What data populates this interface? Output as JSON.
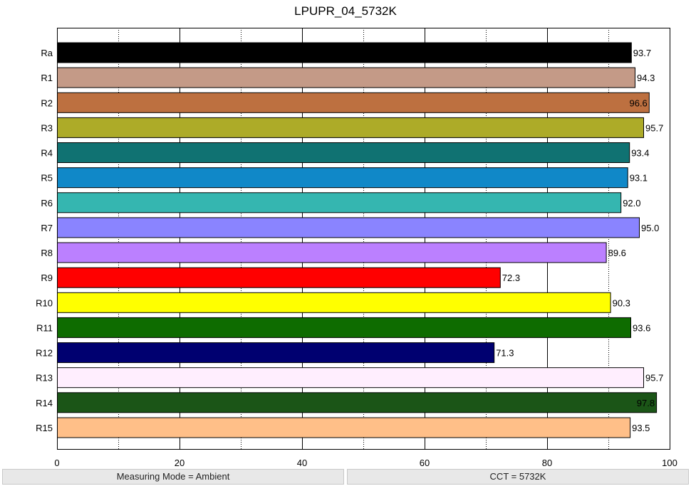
{
  "chart_data": {
    "type": "bar",
    "orientation": "horizontal",
    "title": "LPUPR_04_5732K",
    "categories": [
      "Ra",
      "R1",
      "R2",
      "R3",
      "R4",
      "R5",
      "R6",
      "R7",
      "R8",
      "R9",
      "R10",
      "R11",
      "R12",
      "R13",
      "R14",
      "R15"
    ],
    "values": [
      93.7,
      94.3,
      96.6,
      95.7,
      93.4,
      93.1,
      92.0,
      95.0,
      89.6,
      72.3,
      90.3,
      93.6,
      71.3,
      95.7,
      97.8,
      93.5
    ],
    "value_labels": [
      "93.7",
      "94.3",
      "96.6",
      "95.7",
      "93.4",
      "93.1",
      "92.0",
      "95.0",
      "89.6",
      "72.3",
      "90.3",
      "93.6",
      "71.3",
      "95.7",
      "97.8",
      "93.5"
    ],
    "colors": [
      "#000000",
      "#c49a87",
      "#bd7040",
      "#adab28",
      "#107272",
      "#1088c8",
      "#35b6b0",
      "#8a84ff",
      "#bb80ff",
      "#ff0000",
      "#ffff00",
      "#0e6c00",
      "#000070",
      "#ffeefe",
      "#1b5517",
      "#ffbf88"
    ],
    "xlim": [
      0,
      100
    ],
    "xticks": [
      0,
      20,
      40,
      60,
      80,
      100
    ],
    "xtick_labels": [
      "0",
      "20",
      "40",
      "60",
      "80",
      "100"
    ],
    "minor_gridlines": [
      10,
      30,
      50,
      70,
      90
    ],
    "grid": true
  },
  "status_bar": {
    "measuring_mode": "Measuring Mode = Ambient",
    "cct": "CCT = 5732K"
  }
}
